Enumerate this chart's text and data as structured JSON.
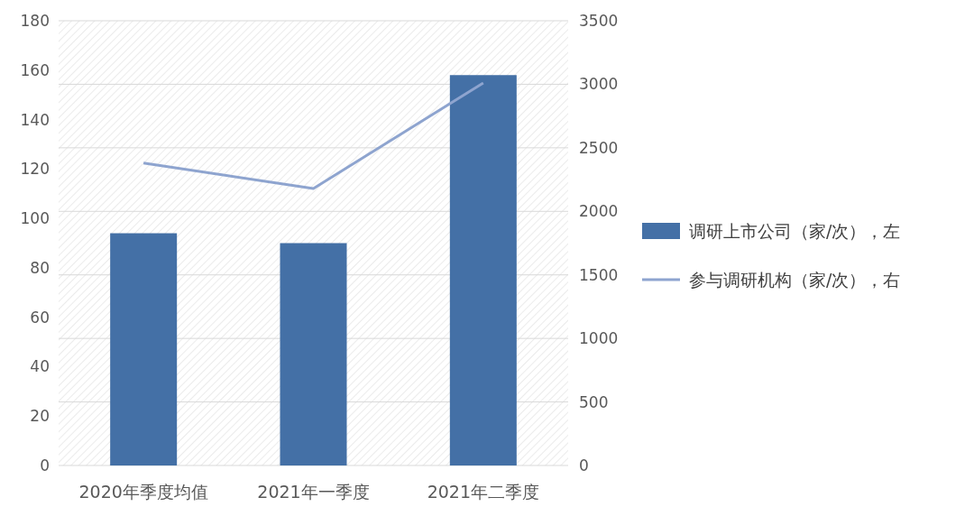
{
  "chart_data": {
    "type": "bar",
    "categories": [
      "2020年季度均值",
      "2021年一季度",
      "2021年二季度"
    ],
    "series": [
      {
        "name": "调研上市公司（家/次），左",
        "color": "#4470a6",
        "values": [
          94,
          90,
          158
        ]
      },
      {
        "name": "参与调研机构（家/次），右",
        "type": "line",
        "axis": "y2",
        "color": "#8ea4cf",
        "values": [
          2380,
          2180,
          3010
        ]
      }
    ],
    "ylim": [
      0,
      180
    ],
    "yticks": [
      0,
      20,
      40,
      60,
      80,
      100,
      120,
      140,
      160,
      180
    ],
    "y2lim": [
      0,
      3500
    ],
    "y2ticks": [
      0,
      500,
      1000,
      1500,
      2000,
      2500,
      3000,
      3500
    ],
    "grid": "y",
    "legend": "right",
    "marker": "none",
    "line_style": "solid"
  }
}
